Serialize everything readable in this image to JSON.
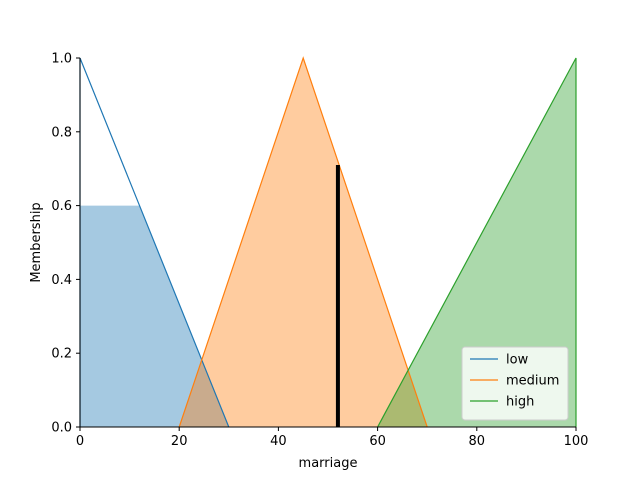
{
  "chart_data": {
    "type": "area",
    "title": "",
    "xlabel": "marriage",
    "ylabel": "Membership",
    "xlim": [
      0,
      100
    ],
    "ylim": [
      0,
      1
    ],
    "xticks": [
      0,
      20,
      40,
      60,
      80,
      100
    ],
    "yticks": [
      0.0,
      0.2,
      0.4,
      0.6,
      0.8,
      1.0
    ],
    "grid": false,
    "legend": "lower-right",
    "series": [
      {
        "name": "low",
        "color": "#1f77b4",
        "x": [
          0,
          0,
          30
        ],
        "y": [
          0,
          1,
          0
        ]
      },
      {
        "name": "medium",
        "color": "#ff7f0e",
        "x": [
          20,
          45,
          70
        ],
        "y": [
          0,
          1,
          0
        ]
      },
      {
        "name": "high",
        "color": "#2ca02c",
        "x": [
          60,
          100,
          100
        ],
        "y": [
          0,
          1,
          0
        ]
      }
    ],
    "activations": [
      {
        "series": "low",
        "x": [
          0,
          12,
          30
        ],
        "y": [
          0.6,
          0.6,
          0
        ],
        "opacity": 0.4
      },
      {
        "series": "medium",
        "x": [
          20,
          45,
          70
        ],
        "y": [
          0,
          1,
          0
        ],
        "opacity": 0.4
      },
      {
        "series": "high",
        "x": [
          60,
          100,
          100
        ],
        "y": [
          0,
          1,
          0
        ],
        "opacity": 0.4
      }
    ],
    "crisp_output": {
      "x": 52,
      "y": 0.71,
      "color": "#000000"
    }
  }
}
